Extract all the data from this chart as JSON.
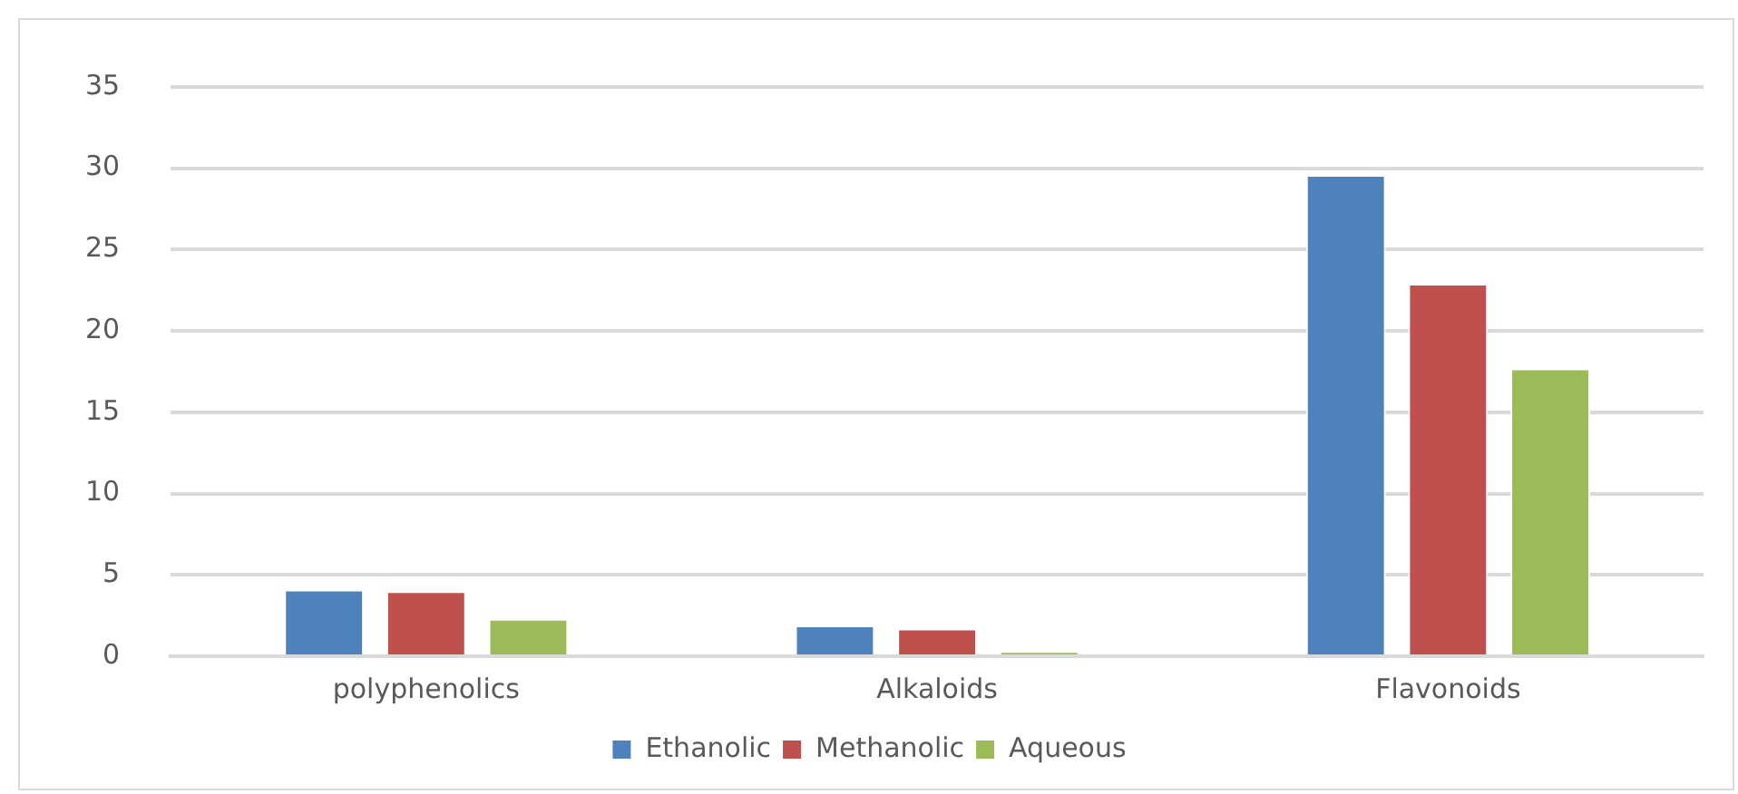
{
  "chart_data": {
    "type": "bar",
    "categories": [
      "polyphenolics",
      "Alkaloids",
      "Flavonoids"
    ],
    "series": [
      {
        "name": "Ethanolic",
        "color": "#4f81bd",
        "values": [
          4.1,
          1.9,
          29.6
        ]
      },
      {
        "name": "Methanolic",
        "color": "#c0504d",
        "values": [
          4.0,
          1.7,
          22.9
        ]
      },
      {
        "name": "Aqueous",
        "color": "#9bbb59",
        "values": [
          2.3,
          0.3,
          17.7
        ]
      }
    ],
    "ylim": [
      0,
      35
    ],
    "yticks": [
      0,
      5,
      10,
      15,
      20,
      25,
      30,
      35
    ],
    "grid": "y",
    "legend": "bottom"
  }
}
